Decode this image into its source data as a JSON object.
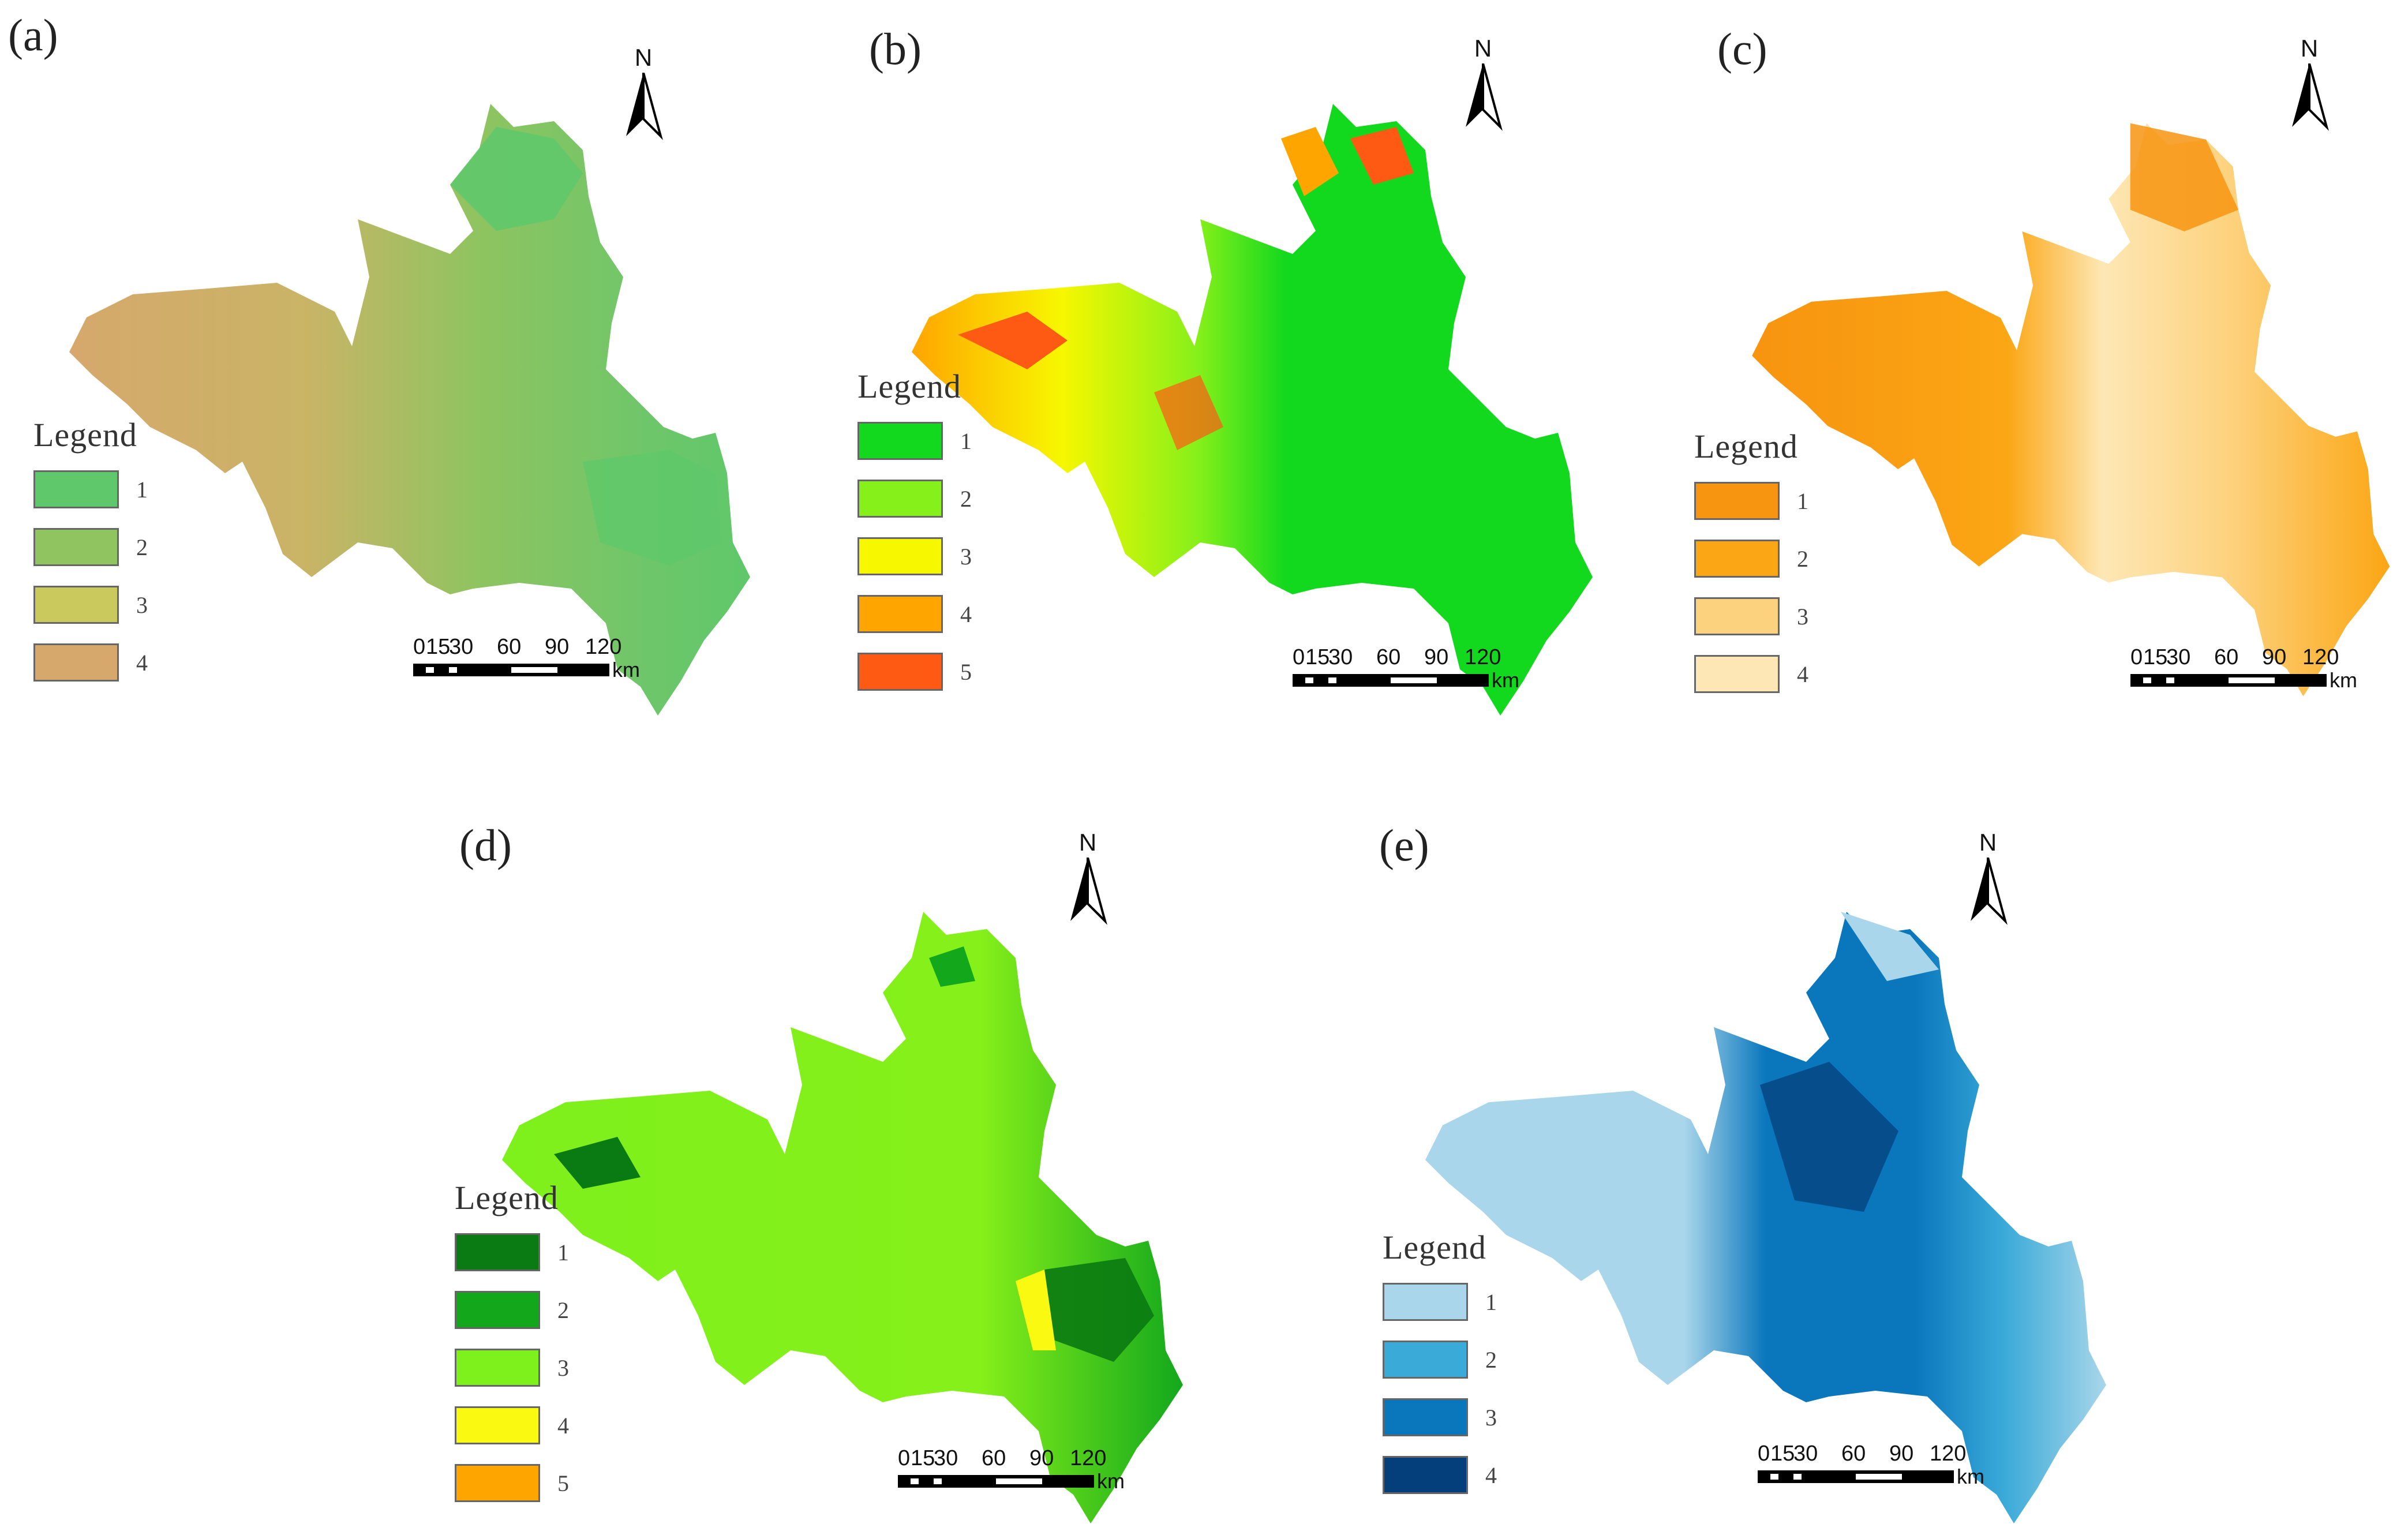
{
  "legend_title": "Legend",
  "north_letter": "N",
  "scale": {
    "ticks": [
      "0",
      "15",
      "30",
      "60",
      "90",
      "120"
    ],
    "unit": "km"
  },
  "panels": [
    {
      "label": "(a)",
      "legend": [
        {
          "value": "1",
          "color": "#5fc86a"
        },
        {
          "value": "2",
          "color": "#8fc460"
        },
        {
          "value": "3",
          "color": "#c9c95d"
        },
        {
          "value": "4",
          "color": "#d6a86c"
        }
      ]
    },
    {
      "label": "(b)",
      "legend": [
        {
          "value": "1",
          "color": "#12d81e"
        },
        {
          "value": "2",
          "color": "#86f01a"
        },
        {
          "value": "3",
          "color": "#f7f700"
        },
        {
          "value": "4",
          "color": "#ffa500"
        },
        {
          "value": "5",
          "color": "#ff5a14"
        }
      ]
    },
    {
      "label": "(c)",
      "legend": [
        {
          "value": "1",
          "color": "#f79410"
        },
        {
          "value": "2",
          "color": "#fba614"
        },
        {
          "value": "3",
          "color": "#fdd27e"
        },
        {
          "value": "4",
          "color": "#fde7b4"
        }
      ]
    },
    {
      "label": "(d)",
      "legend": [
        {
          "value": "1",
          "color": "#0a7a12"
        },
        {
          "value": "2",
          "color": "#13a81c"
        },
        {
          "value": "3",
          "color": "#7ef01c"
        },
        {
          "value": "4",
          "color": "#f9f911"
        },
        {
          "value": "5",
          "color": "#ffa500"
        }
      ]
    },
    {
      "label": "(e)",
      "legend": [
        {
          "value": "1",
          "color": "#a9d6ea"
        },
        {
          "value": "2",
          "color": "#3aaad8"
        },
        {
          "value": "3",
          "color": "#0a77bd"
        },
        {
          "value": "4",
          "color": "#053f7b"
        }
      ]
    }
  ]
}
